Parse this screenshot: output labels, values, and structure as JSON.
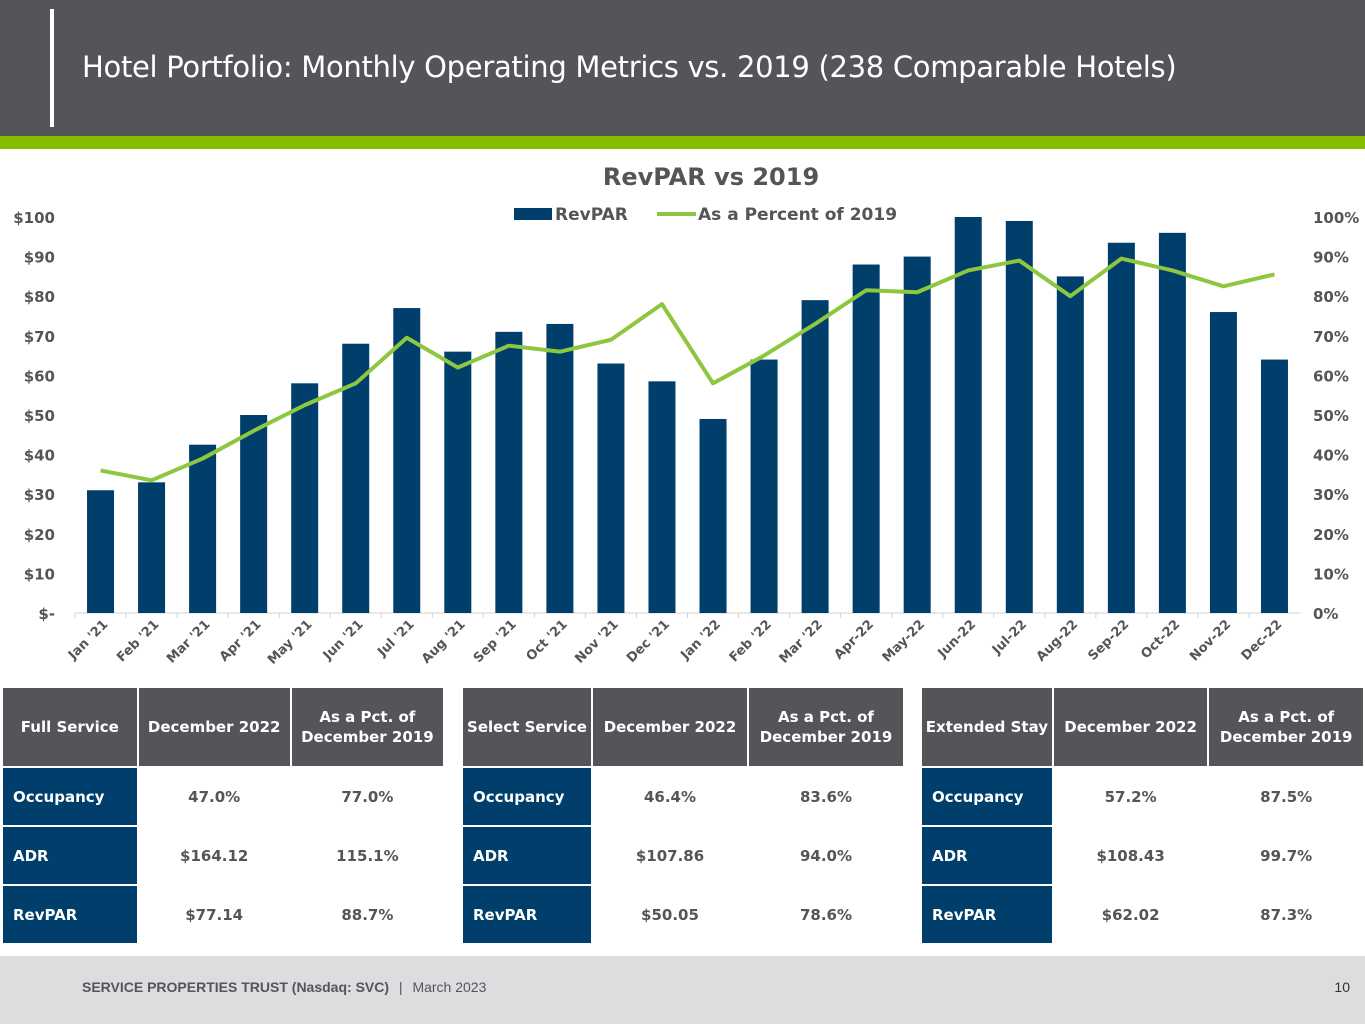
{
  "header": {
    "title": "Hotel Portfolio: Monthly Operating Metrics vs. 2019 (238 Comparable Hotels)"
  },
  "colors": {
    "header_bg": "#545559",
    "accent_green": "#84bd00",
    "bar_navy": "#003f6b",
    "line_green": "#8dc63f",
    "footer_bg": "#dcdddf"
  },
  "chart_data": {
    "type": "bar",
    "title": "RevPAR vs 2019",
    "xlabel": "",
    "ylabel": "",
    "ylim": [
      0,
      100
    ],
    "y2lim": [
      0,
      100
    ],
    "yticks": [
      "$-",
      "$10",
      "$20",
      "$30",
      "$40",
      "$50",
      "$60",
      "$70",
      "$80",
      "$90",
      "$100"
    ],
    "y2ticks": [
      "0%",
      "10%",
      "20%",
      "30%",
      "40%",
      "50%",
      "60%",
      "70%",
      "80%",
      "90%",
      "100%"
    ],
    "legend": {
      "placement": "top-center",
      "entries": [
        "RevPAR",
        "As a Percent of 2019"
      ]
    },
    "grid": false,
    "categories": [
      "Jan '21",
      "Feb '21",
      "Mar '21",
      "Apr '21",
      "May '21",
      "Jun '21",
      "Jul '21",
      "Aug '21",
      "Sep '21",
      "Oct '21",
      "Nov '21",
      "Dec '21",
      "Jan '22",
      "Feb '22",
      "Mar '22",
      "Apr-22",
      "May-22",
      "Jun-22",
      "Jul-22",
      "Aug-22",
      "Sep-22",
      "Oct-22",
      "Nov-22",
      "Dec-22"
    ],
    "series": [
      {
        "name": "RevPAR",
        "type": "bar",
        "axis": "left",
        "unit": "$",
        "values": [
          31,
          33,
          42.5,
          50,
          58,
          68,
          77,
          66,
          71,
          73,
          63,
          58.5,
          49,
          64,
          79,
          88,
          90,
          100,
          99,
          85,
          93.5,
          96,
          76,
          64
        ]
      },
      {
        "name": "As a Percent of 2019",
        "type": "line",
        "axis": "right",
        "unit": "%",
        "values": [
          36,
          33.5,
          39,
          46,
          52.5,
          58,
          69.5,
          62,
          67.5,
          66,
          69,
          78,
          58,
          65,
          73,
          81.5,
          81,
          86.5,
          89,
          80,
          89.5,
          86.5,
          82.5,
          85.5
        ]
      }
    ]
  },
  "tables": [
    {
      "segment": "Full Service",
      "col1": "December 2022",
      "col2": "As a Pct. of December 2019",
      "rows": [
        {
          "label": "Occupancy",
          "v1": "47.0%",
          "v2": "77.0%"
        },
        {
          "label": "ADR",
          "v1": "$164.12",
          "v2": "115.1%"
        },
        {
          "label": "RevPAR",
          "v1": "$77.14",
          "v2": "88.7%"
        }
      ]
    },
    {
      "segment": "Select Service",
      "col1": "December 2022",
      "col2": "As a Pct. of December 2019",
      "rows": [
        {
          "label": "Occupancy",
          "v1": "46.4%",
          "v2": "83.6%"
        },
        {
          "label": "ADR",
          "v1": "$107.86",
          "v2": "94.0%"
        },
        {
          "label": "RevPAR",
          "v1": "$50.05",
          "v2": "78.6%"
        }
      ]
    },
    {
      "segment": "Extended Stay",
      "col1": "December 2022",
      "col2": "As a Pct. of December 2019",
      "rows": [
        {
          "label": "Occupancy",
          "v1": "57.2%",
          "v2": "87.5%"
        },
        {
          "label": "ADR",
          "v1": "$108.43",
          "v2": "99.7%"
        },
        {
          "label": "RevPAR",
          "v1": "$62.02",
          "v2": "87.3%"
        }
      ]
    }
  ],
  "footer": {
    "company": "SERVICE PROPERTIES TRUST (Nasdaq: SVC)",
    "separator": "|",
    "date": "March  2023",
    "page": "10"
  }
}
